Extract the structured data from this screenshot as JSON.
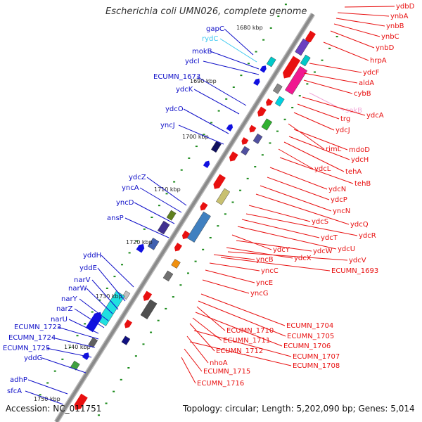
{
  "title": "Escherichia coli UMN026, complete genome",
  "footer": {
    "accession": "Accession: NC_011751",
    "summary": "Topology: circular; Length: 5,202,090 bp; Genes: 5,014"
  },
  "colors": {
    "backbone": "#8a8a8a",
    "left_labels": "#1010c8",
    "right_labels": "#e81010",
    "rna_left": "#3ac8f0",
    "rna_right": "#f0a8d8",
    "tick": "#1a8a1a"
  },
  "kbp_markers": [
    "1680 kbp",
    "1690 kbp",
    "1700 kbp",
    "1710 kbp",
    "1720 kbp",
    "1730 kbp",
    "1740 kbp",
    "1750 kbp"
  ],
  "left_genes": [
    "gapC",
    "rydC",
    "mokB",
    "ydcI",
    "ECUMN_1673",
    "ydcK",
    "ydcO",
    "yncJ",
    "ydcZ",
    "yncA",
    "yncD",
    "ansP",
    "yddH",
    "yddE",
    "narV",
    "narW",
    "narY",
    "narZ",
    "narU",
    "ECUMN_1723",
    "ECUMN_1724",
    "ECUMN_1725",
    "yddG",
    "adhP",
    "sfcA"
  ],
  "right_genes": [
    "ydbD",
    "ynbA",
    "ynbB",
    "ynbC",
    "ynbD",
    "hrpA",
    "ydcF",
    "aldA",
    "cybB",
    "sokB",
    "ydcA",
    "trg",
    "ydcJ",
    "rimL",
    "mdoD",
    "ydcH",
    "tehA",
    "ydcL",
    "tehB",
    "ydcN",
    "ydcP",
    "yncN",
    "ydcQ",
    "ydcS",
    "ydcR",
    "ydcT",
    "ydcU",
    "ydcY",
    "ydcW",
    "ydcX",
    "ydcV",
    "yncB",
    "ECUMN_1693",
    "yncC",
    "yncE",
    "yncG",
    "ECUMN_1704",
    "ECUMN_1705",
    "ECUMN_1710",
    "ECUMN_1706",
    "ECUMN_1711",
    "ECUMN_1712",
    "ECUMN_1707",
    "nhoA",
    "ECUMN_1708",
    "ECUMN_1715",
    "ECUMN_1716"
  ]
}
